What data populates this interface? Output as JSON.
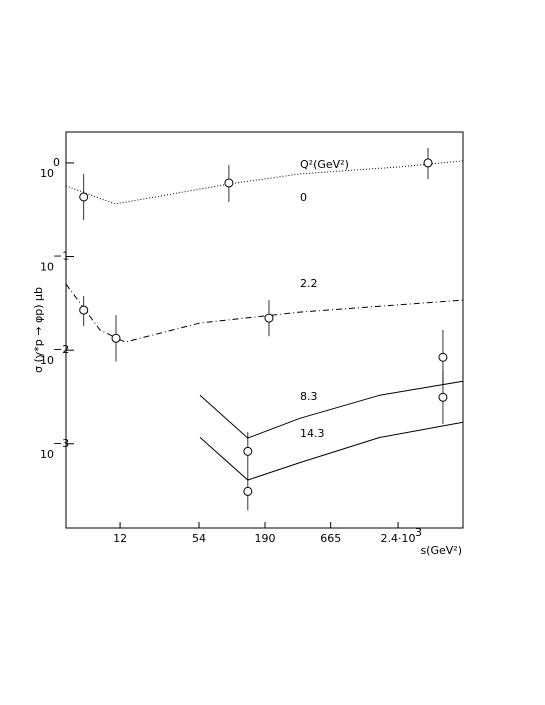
{
  "chart_data": {
    "type": "scatter",
    "x_label": "s(GeV²)",
    "y_label": "σ (γ*p → φp) μb",
    "legend_title": "Q²(GeV²)",
    "xscale": "log",
    "yscale": "log",
    "xlim": [
      4.28,
      8280
    ],
    "ylim": [
      0.000126,
      2.14
    ],
    "xticks": [
      12,
      54,
      190,
      665,
      {
        "value": 2400,
        "label": "2.4·10",
        "exponent": "3"
      }
    ],
    "yticks": [
      {
        "value": 1,
        "label": "10",
        "exponent": "0"
      },
      {
        "value": 0.1,
        "label": "10",
        "exponent": "−1"
      },
      {
        "value": 0.01,
        "label": "10",
        "exponent": "−2"
      },
      {
        "value": 0.001,
        "label": "10",
        "exponent": "−3"
      }
    ],
    "color": "#000000",
    "series": [
      {
        "name": "0",
        "line_style": "dotted",
        "x": [
          6.0,
          95.5,
          4250
        ],
        "values": [
          0.433,
          0.611,
          1.0
        ],
        "lower": [
          0.245,
          0.383,
          0.67
        ],
        "upper": [
          0.76,
          0.95,
          1.45
        ],
        "curve_x": [
          4.28,
          10.9,
          95.5,
          370,
          2490,
          8280
        ],
        "curve_y": [
          0.568,
          0.364,
          0.596,
          0.763,
          0.906,
          1.05
        ]
      },
      {
        "name": "2.2",
        "line_style": "dashdot",
        "x": [
          6.0,
          11.1,
          205
        ],
        "values": [
          0.0268,
          0.0134,
          0.022
        ],
        "lower": [
          0.0181,
          0.0076,
          0.0141
        ],
        "upper": [
          0.0378,
          0.0237,
          0.0343
        ],
        "curve_x": [
          4.28,
          8.2,
          13.2,
          55,
          370,
          8280
        ],
        "curve_y": [
          0.0508,
          0.0164,
          0.0122,
          0.0195,
          0.0255,
          0.0343
        ]
      },
      {
        "name": "8.3",
        "line_style": "solid",
        "x": [
          137,
          5650
        ],
        "values": [
          0.00083,
          0.0084
        ],
        "lower": [
          0.00052,
          0.0043
        ],
        "upper": [
          0.00133,
          0.0164
        ],
        "curve_x": [
          55,
          137,
          370,
          1700,
          8280
        ],
        "curve_y": [
          0.0033,
          0.00115,
          0.00187,
          0.0033,
          0.00466
        ]
      },
      {
        "name": "14.3",
        "line_style": "solid",
        "x": [
          137,
          5650
        ],
        "values": [
          0.00031,
          0.00314
        ],
        "lower": [
          0.000195,
          0.00162
        ],
        "upper": [
          0.00052,
          0.0061
        ],
        "curve_x": [
          55,
          137,
          370,
          1700,
          8280
        ],
        "curve_y": [
          0.00117,
          0.00041,
          0.00063,
          0.00117,
          0.0017
        ]
      }
    ]
  }
}
